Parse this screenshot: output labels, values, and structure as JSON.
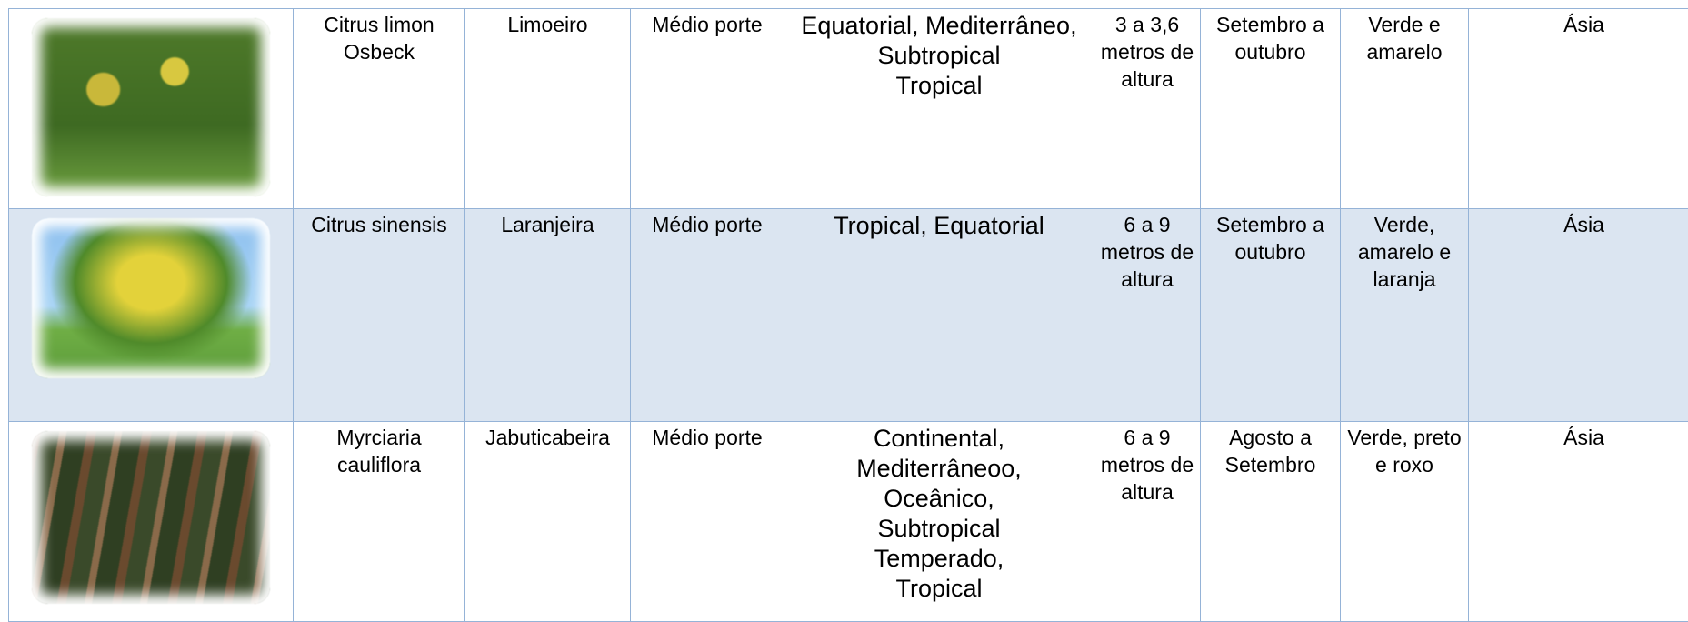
{
  "table": {
    "rows": [
      [
        "Citrus limon Osbeck",
        "Limoeiro",
        "Médio porte",
        "Equatorial, Mediterrâneo,\nSubtropical\nTropical",
        "3 a 3,6 metros de altura",
        "Setembro a outubro",
        "Verde e amarelo",
        "Ásia"
      ],
      [
        "Citrus sinensis",
        "Laranjeira",
        "Médio porte",
        "Tropical, Equatorial",
        "6 a 9 metros de altura",
        "Setembro a outubro",
        "Verde, amarelo e laranja",
        "Ásia"
      ],
      [
        "Myrciaria cauliflora",
        "Jabuticabeira",
        "Médio porte",
        "Continental,\nMediterrâneoo,\nOceânico,\nSubtropical\nTemperado,\nTropical",
        "6 a 9 metros de altura",
        "Agosto a Setembro",
        "Verde, preto e roxo",
        "Ásia"
      ]
    ]
  }
}
